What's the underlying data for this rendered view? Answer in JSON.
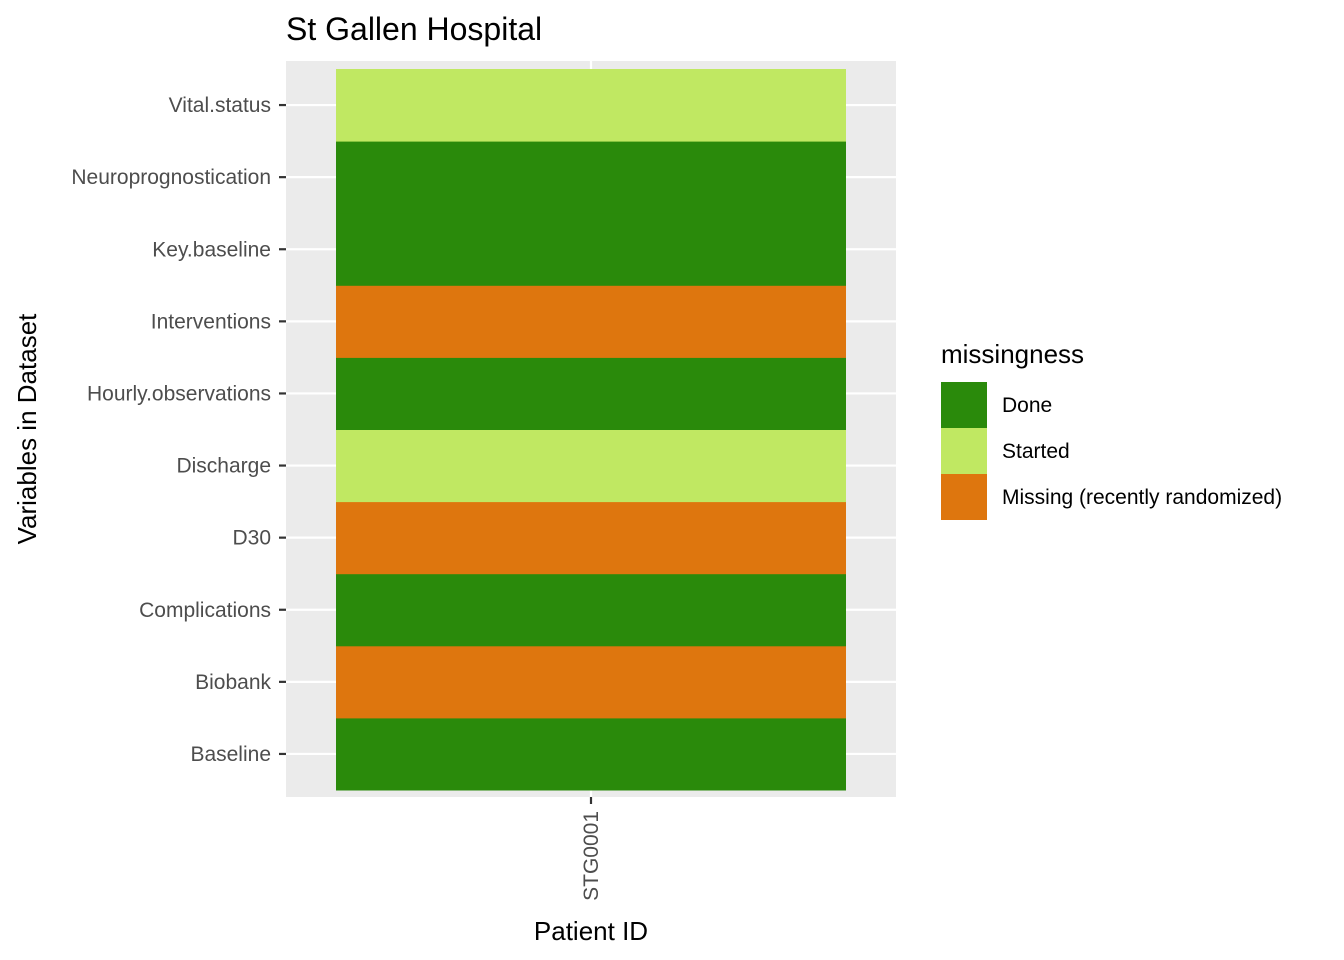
{
  "chart_data": {
    "type": "heatmap",
    "title": "St Gallen Hospital",
    "xlabel": "Patient ID",
    "ylabel": "Variables in Dataset",
    "x": [
      "STG0001"
    ],
    "y": [
      "Baseline",
      "Biobank",
      "Complications",
      "D30",
      "Discharge",
      "Hourly.observations",
      "Interventions",
      "Key.baseline",
      "Neuroprognostication",
      "Vital.status"
    ],
    "cells": [
      {
        "x": "STG0001",
        "y": "Baseline",
        "value": "Done"
      },
      {
        "x": "STG0001",
        "y": "Biobank",
        "value": "Missing (recently randomized)"
      },
      {
        "x": "STG0001",
        "y": "Complications",
        "value": "Done"
      },
      {
        "x": "STG0001",
        "y": "D30",
        "value": "Missing (recently randomized)"
      },
      {
        "x": "STG0001",
        "y": "Discharge",
        "value": "Started"
      },
      {
        "x": "STG0001",
        "y": "Hourly.observations",
        "value": "Done"
      },
      {
        "x": "STG0001",
        "y": "Interventions",
        "value": "Missing (recently randomized)"
      },
      {
        "x": "STG0001",
        "y": "Key.baseline",
        "value": "Done"
      },
      {
        "x": "STG0001",
        "y": "Neuroprognostication",
        "value": "Done"
      },
      {
        "x": "STG0001",
        "y": "Vital.status",
        "value": "Started"
      }
    ],
    "legend": {
      "title": "missingness",
      "position": "right",
      "entries": [
        {
          "label": "Done",
          "color": "#2A8A0B"
        },
        {
          "label": "Started",
          "color": "#C0E862"
        },
        {
          "label": "Missing (recently randomized)",
          "color": "#DE760E"
        }
      ]
    },
    "panel_background": "#EBEBEB",
    "grid": true,
    "grid_color": "#FFFFFF"
  }
}
